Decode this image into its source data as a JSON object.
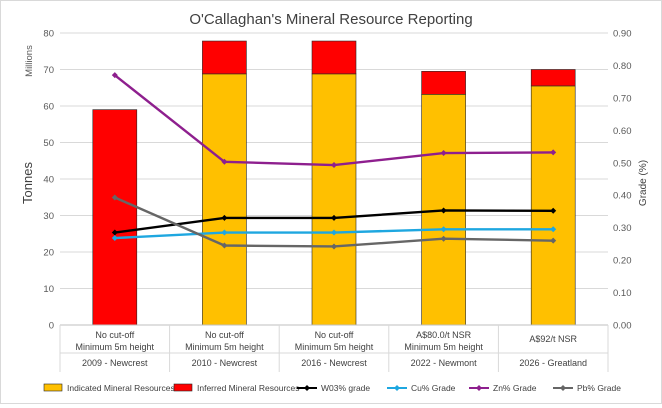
{
  "chart_data": {
    "type": "bar",
    "title": "O'Callaghan's Mineral Resource Reporting",
    "ylabel": "Tonnes",
    "yunits": "Millions",
    "y2label": "Grade (%)",
    "ylim": [
      0,
      80
    ],
    "y2lim": [
      0,
      0.9
    ],
    "yticks": [
      "0",
      "10",
      "20",
      "30",
      "40",
      "50",
      "60",
      "70",
      "80"
    ],
    "y2ticks": [
      "0.00",
      "0.10",
      "0.20",
      "0.30",
      "0.40",
      "0.50",
      "0.60",
      "0.70",
      "0.80",
      "0.90"
    ],
    "categories": [
      {
        "line1": "No cut-off",
        "line2": "Minimum 5m height",
        "line3": "2009 - Newcrest"
      },
      {
        "line1": "No cut-off",
        "line2": "Minimum 5m height",
        "line3": "2010 - Newcrest"
      },
      {
        "line1": "No cut-off",
        "line2": "Minimum 5m height",
        "line3": "2016 - Newcrest"
      },
      {
        "line1": "A$80.0/t NSR",
        "line2": "Minimum 5m height",
        "line3": "2022 - Newmont"
      },
      {
        "line1": "A$92/t NSR",
        "line2": "",
        "line3": "2026 - Greatland"
      }
    ],
    "bar_series": [
      {
        "name": "Indicated Mineral Resources",
        "color": "#ffc000",
        "values": [
          0,
          68.8,
          68.8,
          63.2,
          65.5
        ]
      },
      {
        "name": "Inferred Mineral Resources",
        "color": "#ff0000",
        "values": [
          59.0,
          9.0,
          9.0,
          6.3,
          4.5
        ]
      }
    ],
    "line_series": [
      {
        "name": "W03% grade",
        "color": "#000000",
        "values": [
          0.285,
          0.33,
          0.33,
          0.353,
          0.352
        ]
      },
      {
        "name": "Cu% Grade",
        "color": "#1ea7e0",
        "values": [
          0.268,
          0.285,
          0.285,
          0.295,
          0.295
        ]
      },
      {
        "name": "Zn% Grade",
        "color": "#8e1f8e",
        "values": [
          0.77,
          0.503,
          0.493,
          0.53,
          0.532
        ]
      },
      {
        "name": "Pb% Grade",
        "color": "#666666",
        "values": [
          0.393,
          0.245,
          0.242,
          0.266,
          0.26
        ]
      }
    ],
    "legend_position": "bottom"
  }
}
